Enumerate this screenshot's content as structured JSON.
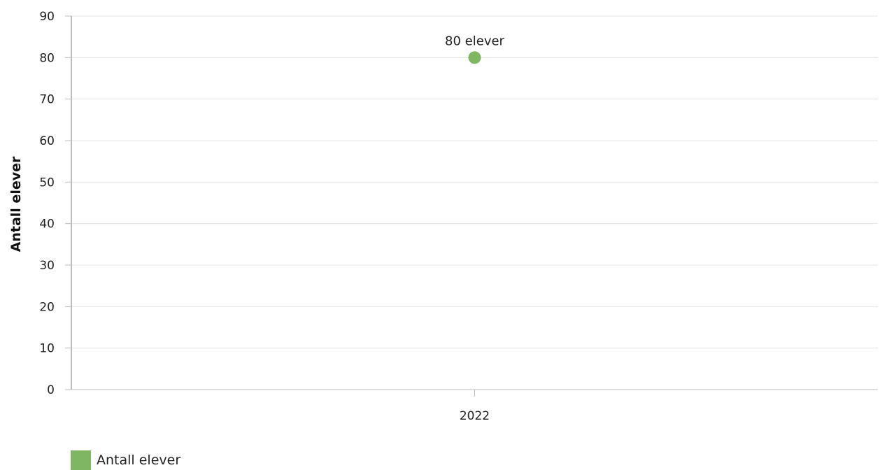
{
  "chart_data": {
    "type": "scatter",
    "ylabel": "Antall elever",
    "xlabel": "",
    "categories": [
      "2022"
    ],
    "ylim": [
      0,
      90
    ],
    "yticks": [
      0,
      10,
      20,
      30,
      40,
      50,
      60,
      70,
      80,
      90
    ],
    "grid": true,
    "series": [
      {
        "name": "Antall elever",
        "color": "#7fb661",
        "values": [
          80
        ],
        "data_labels": [
          "80 elever"
        ]
      }
    ],
    "legend_position": "bottom-left"
  }
}
